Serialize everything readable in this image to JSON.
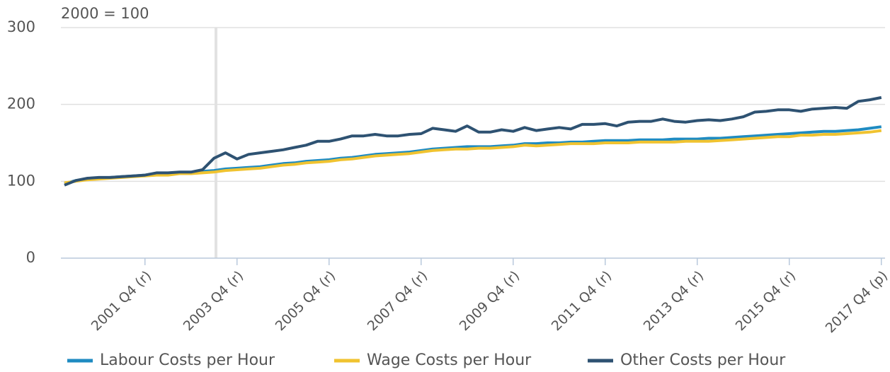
{
  "chart_data": {
    "type": "line",
    "subtitle": "2000 = 100",
    "categories": [
      null,
      null,
      null,
      null,
      null,
      null,
      null,
      "2001 Q4 (r)",
      null,
      null,
      null,
      null,
      null,
      null,
      null,
      "2003 Q4 (r)",
      null,
      null,
      null,
      null,
      null,
      null,
      null,
      "2005 Q4 (r)",
      null,
      null,
      null,
      null,
      null,
      null,
      null,
      "2007 Q4 (r)",
      null,
      null,
      null,
      null,
      null,
      null,
      null,
      "2009 Q4 (r)",
      null,
      null,
      null,
      null,
      null,
      null,
      null,
      "2011 Q4 (r)",
      null,
      null,
      null,
      null,
      null,
      null,
      null,
      "2013 Q4 (r)",
      null,
      null,
      null,
      null,
      null,
      null,
      null,
      "2015 Q4 (r)",
      null,
      null,
      null,
      null,
      null,
      null,
      null,
      "2017 Q4 (p)"
    ],
    "series": [
      {
        "name": "Labour Costs per Hour",
        "color": "#1f8bc1",
        "values": [
          97,
          101,
          103,
          104,
          105,
          106,
          107,
          108,
          110,
          110,
          111,
          111,
          113,
          114,
          116,
          117,
          118,
          119,
          121,
          123,
          124,
          126,
          127,
          128,
          130,
          131,
          133,
          135,
          136,
          137,
          138,
          140,
          142,
          143,
          144,
          145,
          145,
          145,
          146,
          147,
          149,
          149,
          150,
          150,
          151,
          151,
          152,
          153,
          153,
          153,
          154,
          154,
          154,
          155,
          155,
          155,
          156,
          156,
          157,
          158,
          159,
          160,
          161,
          162,
          163,
          164,
          165,
          165,
          166,
          167,
          169,
          171
        ]
      },
      {
        "name": "Wage Costs per Hour",
        "color": "#f0c330",
        "values": [
          98,
          100,
          102,
          103,
          104,
          105,
          106,
          107,
          108,
          108,
          110,
          110,
          111,
          112,
          114,
          115,
          116,
          117,
          119,
          121,
          122,
          124,
          125,
          126,
          128,
          129,
          131,
          133,
          134,
          135,
          136,
          138,
          140,
          141,
          142,
          142,
          143,
          143,
          144,
          145,
          147,
          146,
          147,
          148,
          149,
          149,
          149,
          150,
          150,
          150,
          151,
          151,
          151,
          151,
          152,
          152,
          152,
          153,
          154,
          155,
          156,
          157,
          158,
          158,
          160,
          160,
          161,
          161,
          162,
          163,
          164,
          166
        ]
      },
      {
        "name": "Other Costs per Hour",
        "color": "#2e5272",
        "values": [
          95,
          101,
          104,
          105,
          105,
          106,
          107,
          108,
          111,
          111,
          112,
          112,
          115,
          130,
          137,
          129,
          135,
          137,
          139,
          141,
          144,
          147,
          152,
          152,
          155,
          159,
          159,
          161,
          159,
          159,
          161,
          162,
          169,
          167,
          165,
          172,
          164,
          164,
          167,
          165,
          170,
          166,
          168,
          170,
          168,
          174,
          174,
          175,
          172,
          177,
          178,
          178,
          181,
          178,
          177,
          179,
          180,
          179,
          181,
          184,
          190,
          191,
          193,
          193,
          191,
          194,
          195,
          196,
          195,
          204,
          206,
          209
        ]
      }
    ],
    "ylim": [
      0,
      300
    ],
    "yticks": [
      0,
      100,
      200,
      300
    ],
    "grid": true
  }
}
